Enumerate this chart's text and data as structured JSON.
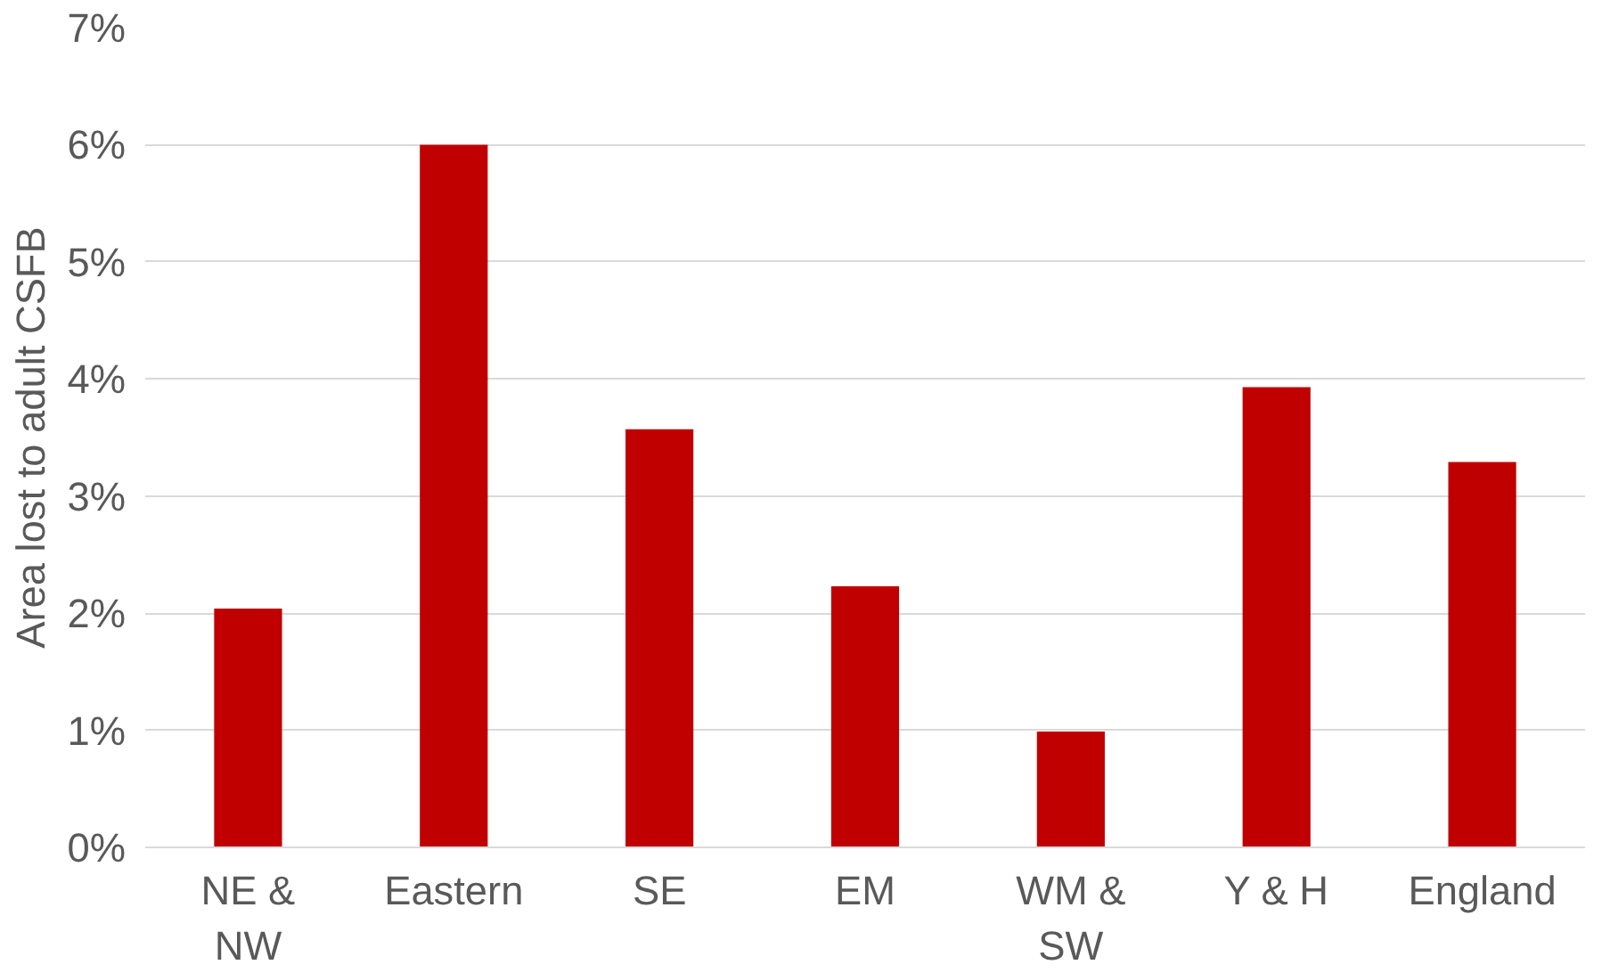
{
  "chart_data": {
    "type": "bar",
    "ylabel": "Area lost to adult CSFB",
    "categories": [
      "NE &\nNW",
      "Eastern",
      "SE",
      "EM",
      "WM &\nSW",
      "Y & H",
      "England"
    ],
    "values": [
      2.04,
      6.0,
      3.57,
      2.23,
      0.99,
      3.93,
      3.29
    ],
    "color": "#c00000",
    "ylim": [
      0,
      7
    ],
    "yticks": [
      {
        "value": 0,
        "label": "0%"
      },
      {
        "value": 1,
        "label": "1%"
      },
      {
        "value": 2,
        "label": "2%"
      },
      {
        "value": 3,
        "label": "3%"
      },
      {
        "value": 4,
        "label": "4%"
      },
      {
        "value": 5,
        "label": "5%"
      },
      {
        "value": 6,
        "label": "6%"
      },
      {
        "value": 7,
        "label": "7%"
      }
    ],
    "grid": "y"
  }
}
